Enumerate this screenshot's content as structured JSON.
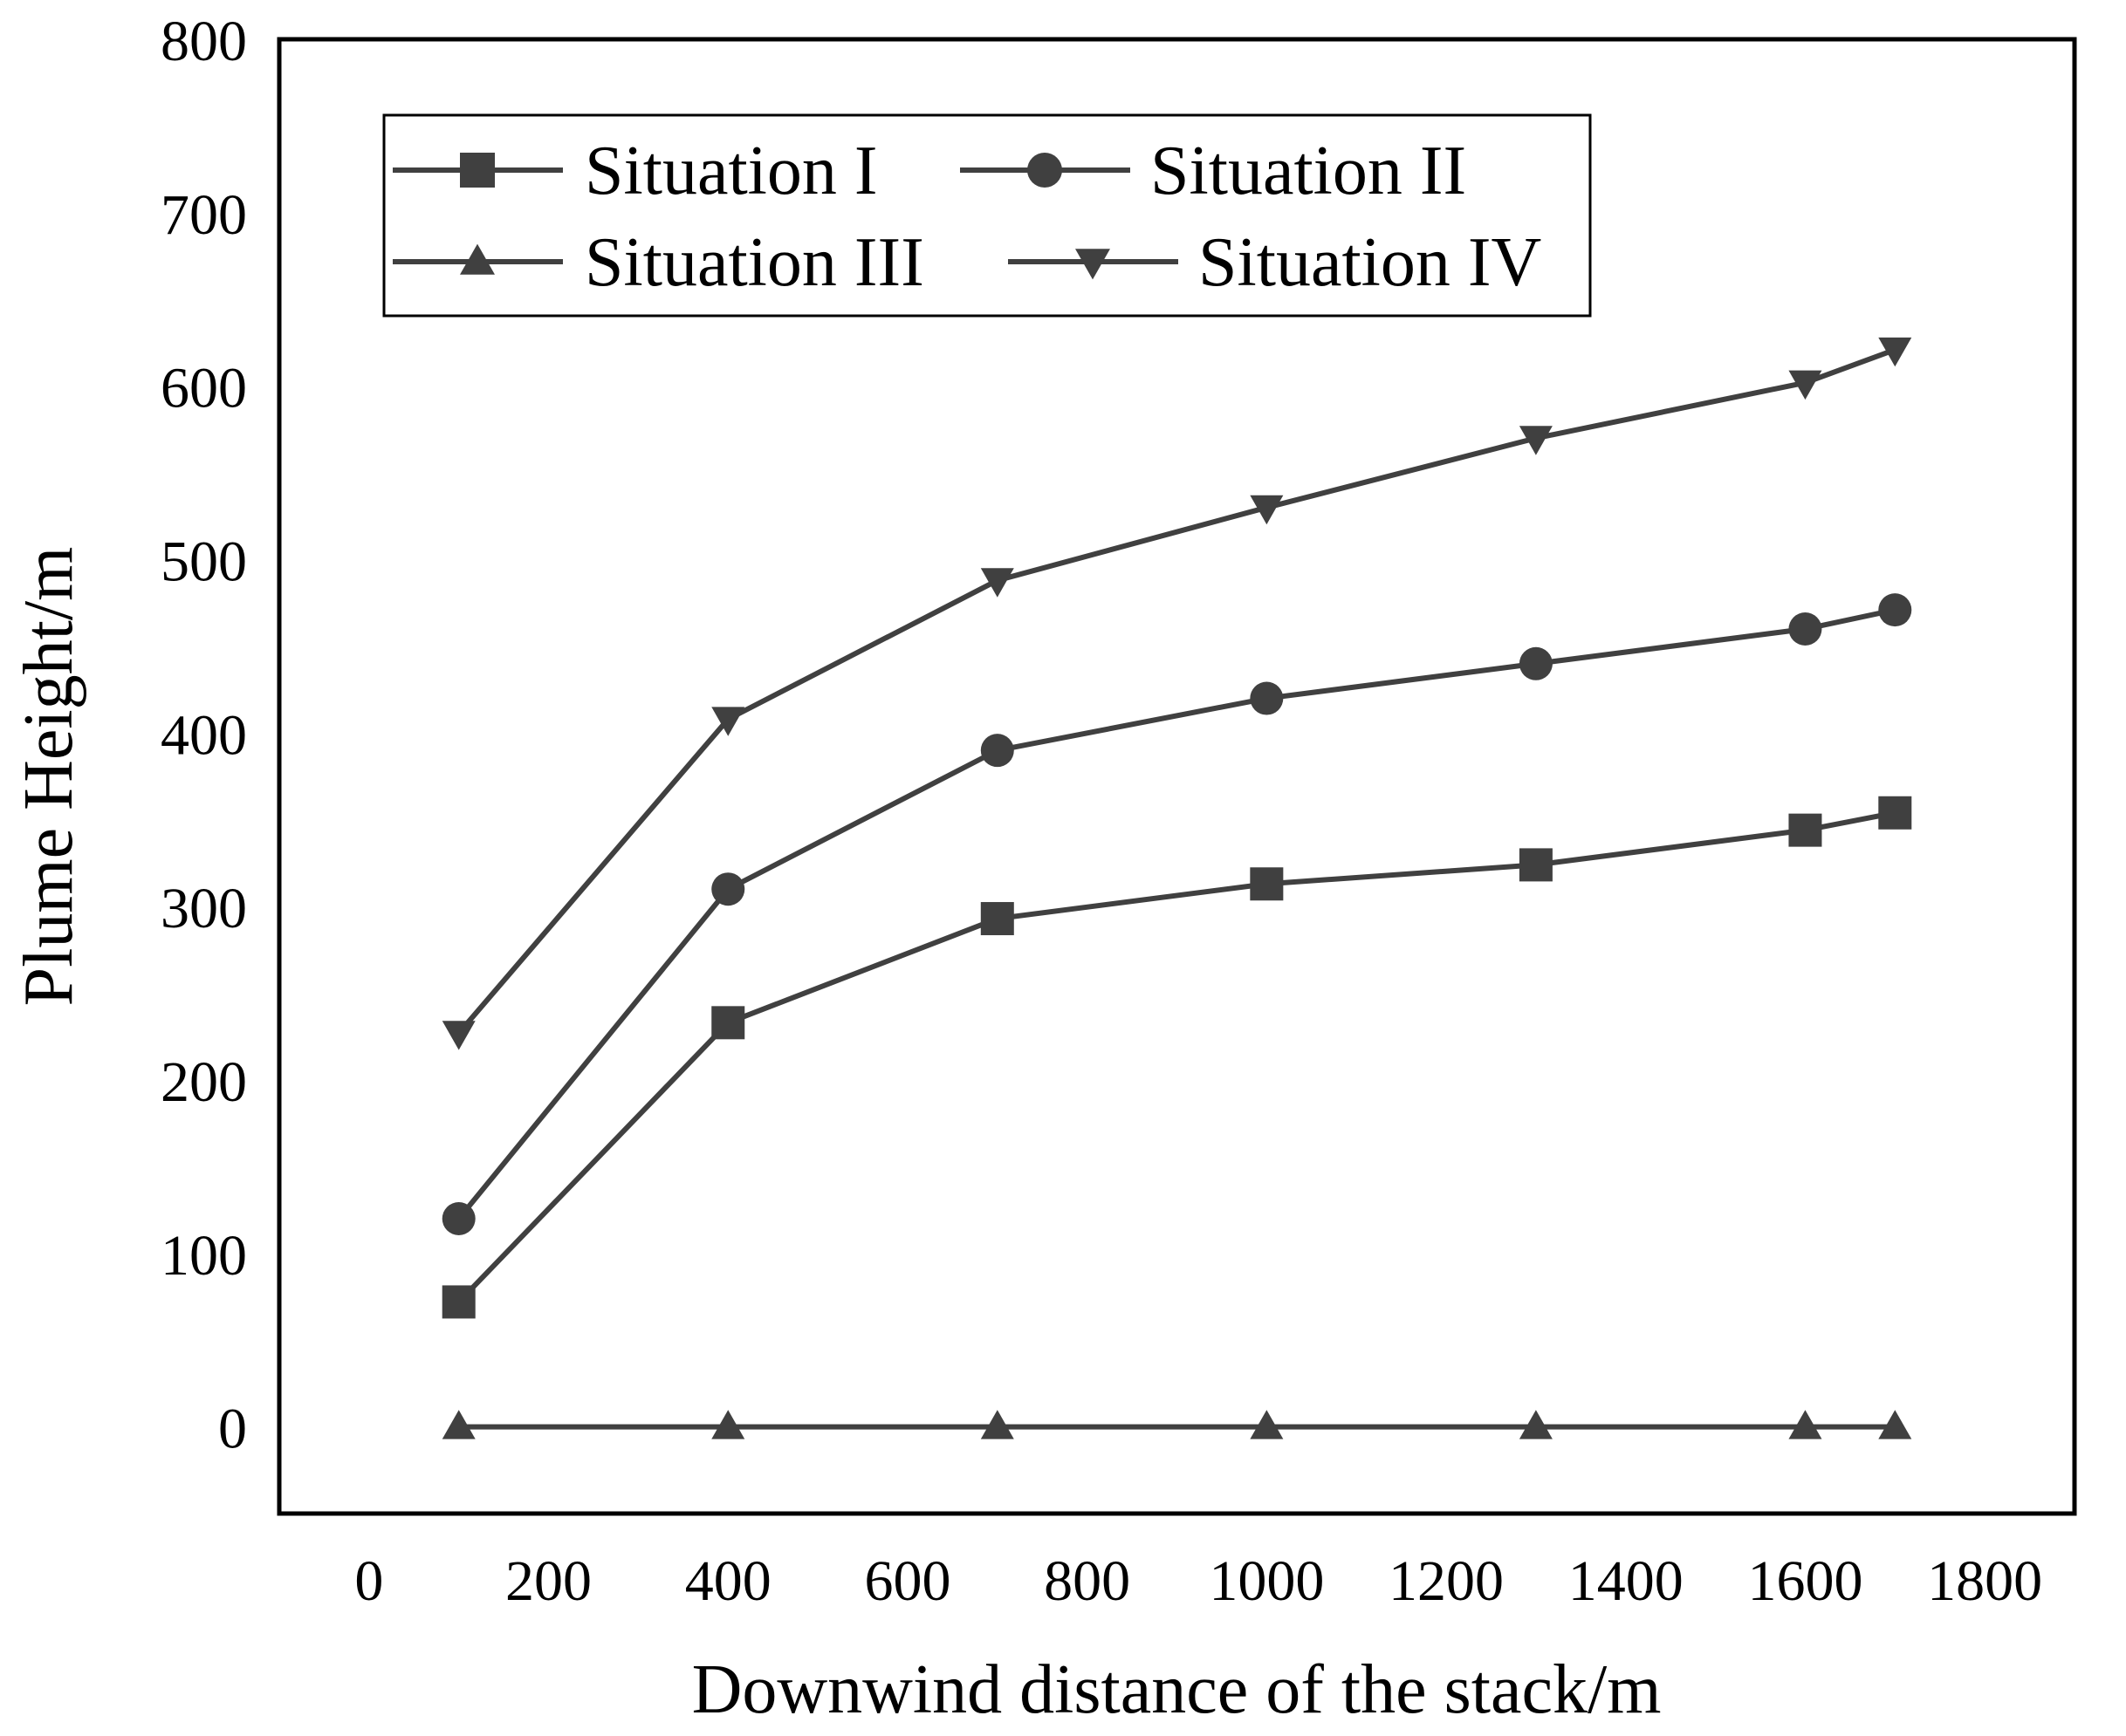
{
  "chart_data": {
    "type": "line",
    "title": "",
    "xlabel": "Downwind distance of the stack/m",
    "ylabel": "Plume Height/m",
    "xlim": [
      -100,
      1900
    ],
    "ylim": [
      -50,
      800
    ],
    "xticks": [
      0,
      200,
      400,
      600,
      800,
      1000,
      1200,
      1400,
      1600,
      1800
    ],
    "yticks": [
      0,
      100,
      200,
      300,
      400,
      500,
      600,
      700,
      800
    ],
    "grid": false,
    "legend_position": "top-left",
    "line_color": "#404040",
    "x": [
      100,
      400,
      700,
      1000,
      1300,
      1600,
      1700
    ],
    "series": [
      {
        "name": "Situation I",
        "marker": "square",
        "values": [
          72,
          233,
          293,
          313,
          324,
          344,
          354
        ]
      },
      {
        "name": "Situation II",
        "marker": "circle",
        "values": [
          120,
          310,
          390,
          420,
          440,
          460,
          471
        ]
      },
      {
        "name": "Situation III",
        "marker": "triangle-up",
        "values": [
          0,
          0,
          0,
          0,
          0,
          0,
          0
        ]
      },
      {
        "name": "Situation IV",
        "marker": "triangle-down",
        "values": [
          227,
          408,
          488,
          530,
          570,
          602,
          621
        ]
      }
    ]
  }
}
